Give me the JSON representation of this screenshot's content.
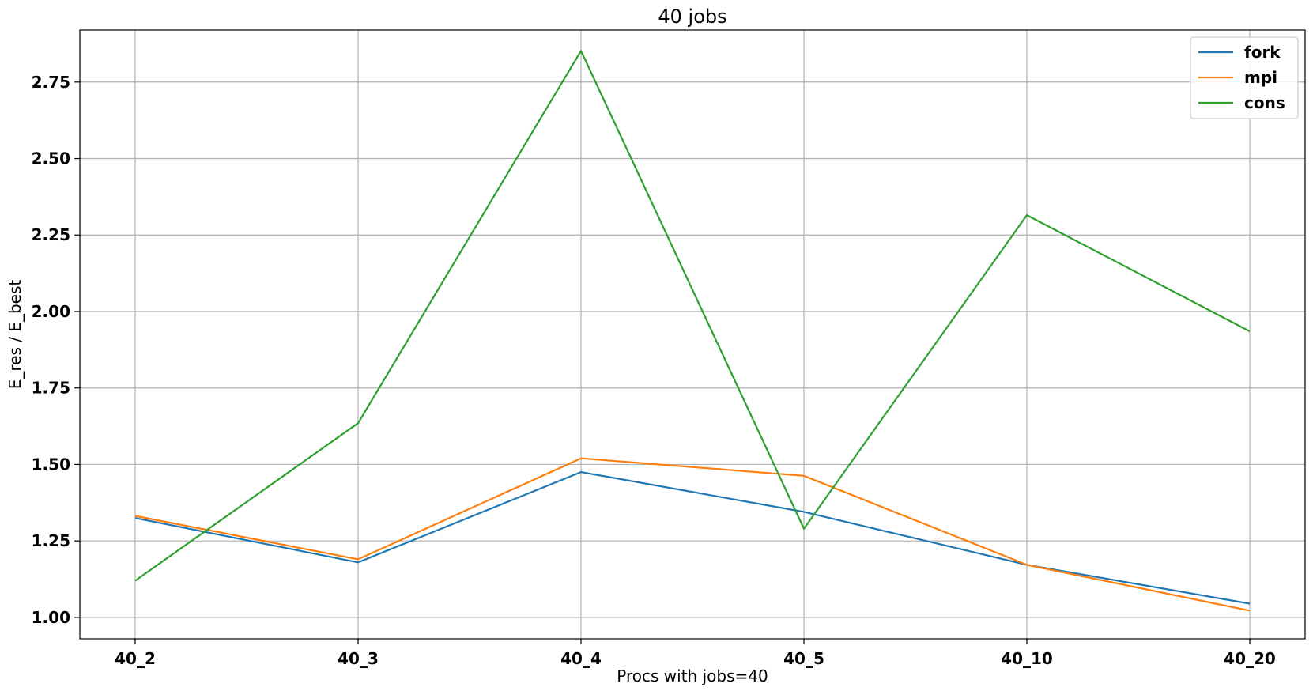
{
  "chart_data": {
    "type": "line",
    "title": "40 jobs",
    "xlabel": "Procs with jobs=40",
    "ylabel": "E_res / E_best",
    "categories": [
      "40_2",
      "40_3",
      "40_4",
      "40_5",
      "40_10",
      "40_20"
    ],
    "ylim": [
      0.93,
      2.92
    ],
    "yticks": [
      1.0,
      1.25,
      1.5,
      1.75,
      2.0,
      2.25,
      2.5,
      2.75
    ],
    "ytick_labels": [
      "1.00",
      "1.25",
      "1.50",
      "1.75",
      "2.00",
      "2.25",
      "2.50",
      "2.75"
    ],
    "grid": true,
    "legend_position": "top-right",
    "series": [
      {
        "name": "fork",
        "color": "#1f77b4",
        "values": [
          1.325,
          1.18,
          1.475,
          1.345,
          1.172,
          1.045
        ]
      },
      {
        "name": "mpi",
        "color": "#ff7f0e",
        "values": [
          1.332,
          1.19,
          1.52,
          1.463,
          1.172,
          1.022
        ]
      },
      {
        "name": "cons",
        "color": "#2ca02c",
        "values": [
          1.12,
          1.635,
          2.852,
          1.29,
          2.315,
          1.935
        ]
      }
    ]
  }
}
